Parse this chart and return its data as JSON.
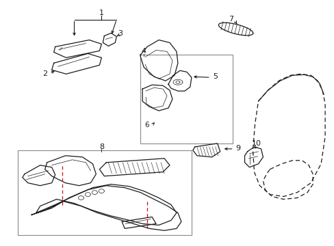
{
  "bg_color": "#ffffff",
  "line_color": "#1a1a1a",
  "red_color": "#dd0000",
  "gray_color": "#888888",
  "figsize": [
    4.89,
    3.6
  ],
  "dpi": 100
}
